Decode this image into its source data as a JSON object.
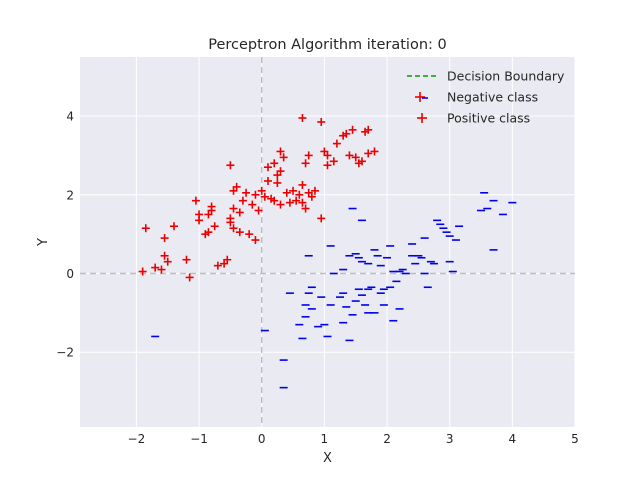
{
  "chart_data": {
    "type": "scatter",
    "title": "Perceptron Algorithm iteration: 0",
    "xlabel": "X",
    "ylabel": "Y",
    "xlim": [
      -2.9,
      5.0
    ],
    "ylim": [
      -3.9,
      5.5
    ],
    "xticks": [
      -2,
      -1,
      0,
      1,
      2,
      3,
      4,
      5
    ],
    "yticks": [
      -2,
      0,
      2,
      4
    ],
    "xtick_labels": [
      "−2",
      "−1",
      "0",
      "1",
      "2",
      "3",
      "4",
      "5"
    ],
    "ytick_labels": [
      "−2",
      "0",
      "2",
      "4"
    ],
    "grid": true,
    "legend_position": "top-right",
    "colors": {
      "background": "#eaeaf2",
      "grid": "#ffffff",
      "decision_boundary": "#00a000",
      "negative": "#0000ee",
      "positive": "#ee0000",
      "zero_line": "#bdbdbd"
    },
    "decision_boundary": {
      "name": "Decision Boundary",
      "points": []
    },
    "series": [
      {
        "name": "Negative class",
        "marker": "_",
        "points": [
          [
            -1.7,
            -1.6
          ],
          [
            0.05,
            -1.45
          ],
          [
            0.35,
            -2.2
          ],
          [
            0.35,
            -2.9
          ],
          [
            0.45,
            -0.5
          ],
          [
            0.6,
            -1.3
          ],
          [
            0.7,
            -0.8
          ],
          [
            0.7,
            -1.1
          ],
          [
            0.75,
            -0.5
          ],
          [
            0.8,
            -0.9
          ],
          [
            0.8,
            -0.35
          ],
          [
            0.65,
            -1.65
          ],
          [
            0.9,
            -1.35
          ],
          [
            1.0,
            -1.3
          ],
          [
            1.05,
            -1.6
          ],
          [
            0.95,
            -0.6
          ],
          [
            1.1,
            -0.8
          ],
          [
            1.15,
            0.0
          ],
          [
            1.25,
            -0.6
          ],
          [
            1.3,
            -0.5
          ],
          [
            1.35,
            -0.85
          ],
          [
            1.3,
            -1.25
          ],
          [
            1.4,
            -1.7
          ],
          [
            1.45,
            -1.05
          ],
          [
            1.5,
            -0.7
          ],
          [
            1.55,
            -0.4
          ],
          [
            1.6,
            -0.55
          ],
          [
            1.65,
            -0.8
          ],
          [
            1.7,
            -0.4
          ],
          [
            1.75,
            -0.35
          ],
          [
            1.8,
            -1.0
          ],
          [
            1.7,
            -1.0
          ],
          [
            1.9,
            -0.5
          ],
          [
            1.95,
            -0.4
          ],
          [
            1.95,
            -0.8
          ],
          [
            2.05,
            -0.35
          ],
          [
            2.1,
            -1.2
          ],
          [
            2.2,
            -0.9
          ],
          [
            2.15,
            -0.2
          ],
          [
            0.75,
            0.45
          ],
          [
            1.1,
            0.7
          ],
          [
            1.3,
            0.1
          ],
          [
            1.4,
            0.45
          ],
          [
            1.5,
            0.5
          ],
          [
            1.55,
            0.4
          ],
          [
            1.6,
            0.3
          ],
          [
            1.7,
            0.25
          ],
          [
            1.8,
            0.6
          ],
          [
            1.85,
            0.45
          ],
          [
            1.9,
            0.2
          ],
          [
            2.0,
            0.4
          ],
          [
            2.1,
            0.05
          ],
          [
            2.05,
            0.7
          ],
          [
            2.2,
            0.05
          ],
          [
            2.25,
            0.1
          ],
          [
            2.3,
            0.0
          ],
          [
            2.4,
            0.45
          ],
          [
            2.4,
            0.75
          ],
          [
            2.45,
            0.25
          ],
          [
            2.5,
            0.45
          ],
          [
            2.55,
            0.4
          ],
          [
            2.6,
            0.0
          ],
          [
            2.65,
            -0.35
          ],
          [
            2.7,
            0.3
          ],
          [
            2.75,
            0.25
          ],
          [
            2.8,
            1.35
          ],
          [
            2.85,
            1.25
          ],
          [
            2.9,
            1.15
          ],
          [
            2.95,
            1.05
          ],
          [
            3.0,
            0.95
          ],
          [
            3.05,
            0.05
          ],
          [
            3.1,
            0.85
          ],
          [
            3.15,
            1.2
          ],
          [
            3.0,
            0.3
          ],
          [
            2.6,
            0.9
          ],
          [
            1.45,
            1.65
          ],
          [
            1.6,
            1.35
          ],
          [
            3.55,
            2.05
          ],
          [
            3.6,
            1.65
          ],
          [
            3.7,
            1.85
          ],
          [
            3.85,
            1.5
          ],
          [
            4.0,
            1.8
          ],
          [
            3.7,
            0.6
          ],
          [
            3.5,
            1.6
          ]
        ]
      },
      {
        "name": "Positive class",
        "marker": "+",
        "points": [
          [
            -1.85,
            1.15
          ],
          [
            -1.9,
            0.05
          ],
          [
            -1.7,
            0.15
          ],
          [
            -1.6,
            0.1
          ],
          [
            -1.55,
            0.9
          ],
          [
            -1.55,
            0.45
          ],
          [
            -1.5,
            0.3
          ],
          [
            -1.4,
            1.2
          ],
          [
            -1.2,
            0.35
          ],
          [
            -1.15,
            -0.1
          ],
          [
            -1.05,
            1.85
          ],
          [
            -1.0,
            1.5
          ],
          [
            -1.0,
            1.35
          ],
          [
            -0.9,
            1.0
          ],
          [
            -0.85,
            1.05
          ],
          [
            -0.85,
            1.5
          ],
          [
            -0.8,
            1.6
          ],
          [
            -0.8,
            1.7
          ],
          [
            -0.75,
            1.2
          ],
          [
            -0.7,
            0.2
          ],
          [
            -0.6,
            0.25
          ],
          [
            -0.55,
            0.35
          ],
          [
            -0.5,
            1.3
          ],
          [
            -0.5,
            1.4
          ],
          [
            -0.5,
            2.75
          ],
          [
            -0.45,
            2.1
          ],
          [
            -0.45,
            1.15
          ],
          [
            -0.45,
            1.65
          ],
          [
            -0.4,
            2.2
          ],
          [
            -0.35,
            1.55
          ],
          [
            -0.35,
            1.05
          ],
          [
            -0.3,
            1.85
          ],
          [
            -0.25,
            2.05
          ],
          [
            -0.2,
            1.0
          ],
          [
            -0.15,
            1.75
          ],
          [
            -0.1,
            0.85
          ],
          [
            -0.1,
            2.0
          ],
          [
            -0.05,
            1.6
          ],
          [
            0.0,
            2.1
          ],
          [
            0.05,
            1.95
          ],
          [
            0.1,
            2.35
          ],
          [
            0.1,
            2.7
          ],
          [
            0.15,
            1.9
          ],
          [
            0.2,
            2.8
          ],
          [
            0.2,
            1.85
          ],
          [
            0.25,
            2.5
          ],
          [
            0.25,
            2.3
          ],
          [
            0.3,
            2.6
          ],
          [
            0.3,
            3.1
          ],
          [
            0.3,
            1.75
          ],
          [
            0.35,
            2.95
          ],
          [
            0.4,
            2.05
          ],
          [
            0.45,
            1.8
          ],
          [
            0.5,
            2.1
          ],
          [
            0.55,
            1.85
          ],
          [
            0.6,
            2.0
          ],
          [
            0.65,
            2.25
          ],
          [
            0.65,
            1.8
          ],
          [
            0.7,
            2.8
          ],
          [
            0.7,
            1.65
          ],
          [
            0.75,
            2.05
          ],
          [
            0.8,
            1.95
          ],
          [
            0.85,
            2.1
          ],
          [
            0.95,
            1.4
          ],
          [
            1.0,
            3.1
          ],
          [
            1.05,
            3.0
          ],
          [
            1.05,
            2.75
          ],
          [
            1.15,
            2.85
          ],
          [
            1.2,
            3.3
          ],
          [
            1.3,
            3.5
          ],
          [
            1.35,
            3.55
          ],
          [
            1.4,
            3.0
          ],
          [
            1.45,
            3.65
          ],
          [
            1.5,
            2.95
          ],
          [
            1.55,
            2.8
          ],
          [
            1.6,
            2.85
          ],
          [
            1.65,
            3.6
          ],
          [
            1.7,
            3.65
          ],
          [
            1.7,
            3.05
          ],
          [
            1.8,
            3.1
          ],
          [
            0.65,
            3.95
          ],
          [
            0.95,
            3.85
          ],
          [
            0.75,
            3.0
          ]
        ]
      }
    ]
  }
}
